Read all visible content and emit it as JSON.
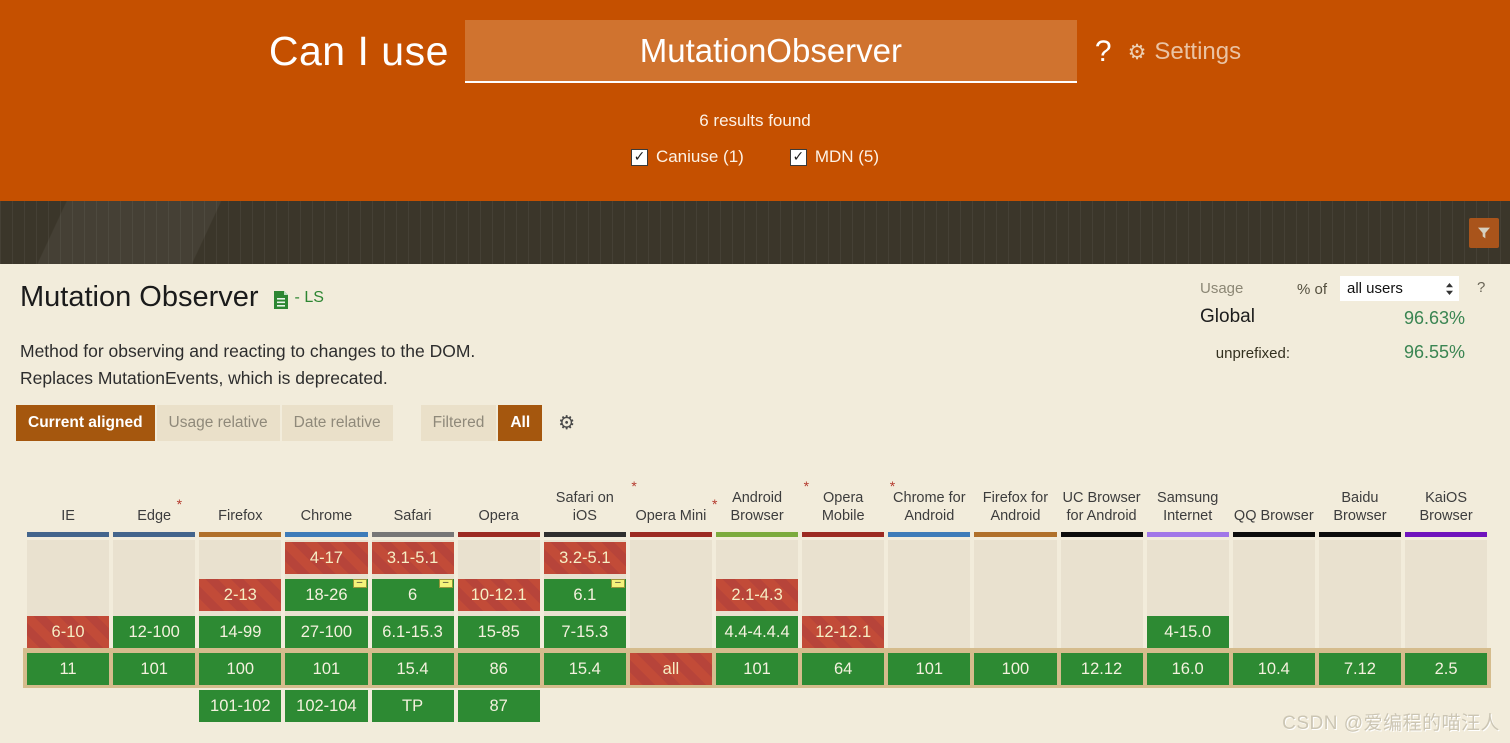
{
  "header": {
    "brand": "Can I use",
    "search_value": "MutationObserver",
    "help": "?",
    "settings_label": "Settings",
    "results_text": "6 results found",
    "sources": [
      {
        "label": "Caniuse (1)",
        "checked": true
      },
      {
        "label": "MDN (5)",
        "checked": true
      }
    ]
  },
  "feature": {
    "title": "Mutation Observer",
    "spec_status": "- LS",
    "description_line1": "Method for observing and reacting to changes to the DOM.",
    "description_line2": "Replaces MutationEvents, which is deprecated."
  },
  "usage": {
    "label": "Usage",
    "percent_of": "% of",
    "selected_option": "all users",
    "help": "?",
    "global_label": "Global",
    "global_value": "96.63%",
    "unprefixed_label": "unprefixed:",
    "unprefixed_value": "96.55%"
  },
  "toolbar": {
    "tabs": [
      {
        "label": "Current aligned",
        "active": true
      },
      {
        "label": "Usage relative",
        "active": false
      },
      {
        "label": "Date relative",
        "active": false
      }
    ],
    "filters": [
      {
        "label": "Filtered",
        "active": false
      },
      {
        "label": "All",
        "active": true
      }
    ]
  },
  "table": {
    "columns": [
      {
        "label": "IE",
        "starred": false,
        "brand": "#44658c",
        "rows": {
          "3": {
            "t": "6-10",
            "s": "n"
          },
          "4": {
            "t": "11",
            "s": "y"
          }
        }
      },
      {
        "label": "Edge",
        "starred": true,
        "brand": "#44658c",
        "rows": {
          "3": {
            "t": "12-100",
            "s": "y"
          },
          "4": {
            "t": "101",
            "s": "y"
          }
        }
      },
      {
        "label": "Firefox",
        "starred": false,
        "brand": "#b0702a",
        "rows": {
          "2": {
            "t": "2-13",
            "s": "n"
          },
          "3": {
            "t": "14-99",
            "s": "y"
          },
          "4": {
            "t": "100",
            "s": "y"
          },
          "5": {
            "t": "101-102",
            "s": "y"
          }
        }
      },
      {
        "label": "Chrome",
        "starred": false,
        "brand": "#3e7cb9",
        "rows": {
          "1": {
            "t": "4-17",
            "s": "n"
          },
          "2": {
            "t": "18-26",
            "s": "y",
            "note": true
          },
          "3": {
            "t": "27-100",
            "s": "y"
          },
          "4": {
            "t": "101",
            "s": "y"
          },
          "5": {
            "t": "102-104",
            "s": "y"
          }
        }
      },
      {
        "label": "Safari",
        "starred": false,
        "brand": "#777777",
        "rows": {
          "1": {
            "t": "3.1-5.1",
            "s": "n"
          },
          "2": {
            "t": "6",
            "s": "y",
            "note": true
          },
          "3": {
            "t": "6.1-15.3",
            "s": "y"
          },
          "4": {
            "t": "15.4",
            "s": "y"
          },
          "5": {
            "t": "TP",
            "s": "y"
          }
        }
      },
      {
        "label": "Opera",
        "starred": false,
        "brand": "#9c2b23",
        "rows": {
          "2": {
            "t": "10-12.1",
            "s": "n"
          },
          "3": {
            "t": "15-85",
            "s": "y"
          },
          "4": {
            "t": "86",
            "s": "y"
          },
          "5": {
            "t": "87",
            "s": "y"
          }
        }
      },
      {
        "label": "Safari on iOS",
        "starred": true,
        "brand": "#2f2f2f",
        "rows": {
          "1": {
            "t": "3.2-5.1",
            "s": "n"
          },
          "2": {
            "t": "6.1",
            "s": "y",
            "note": true
          },
          "3": {
            "t": "7-15.3",
            "s": "y"
          },
          "4": {
            "t": "15.4",
            "s": "y"
          }
        }
      },
      {
        "label": "Opera Mini",
        "starred": true,
        "brand": "#9c2b23",
        "rows": {
          "4": {
            "t": "all",
            "s": "n"
          }
        }
      },
      {
        "label": "Android Browser",
        "starred": true,
        "brand": "#7cab3e",
        "rows": {
          "2": {
            "t": "2.1-4.3",
            "s": "n"
          },
          "3": {
            "t": "4.4-4.4.4",
            "s": "y"
          },
          "4": {
            "t": "101",
            "s": "y"
          }
        }
      },
      {
        "label": "Opera Mobile",
        "starred": true,
        "brand": "#9c2b23",
        "rows": {
          "3": {
            "t": "12-12.1",
            "s": "n"
          },
          "4": {
            "t": "64",
            "s": "y"
          }
        }
      },
      {
        "label": "Chrome for Android",
        "starred": false,
        "brand": "#3e7cb9",
        "rows": {
          "4": {
            "t": "101",
            "s": "y"
          }
        }
      },
      {
        "label": "Firefox for Android",
        "starred": false,
        "brand": "#b0702a",
        "rows": {
          "4": {
            "t": "100",
            "s": "y"
          }
        }
      },
      {
        "label": "UC Browser for Android",
        "starred": false,
        "brand": "#0d0d0d",
        "rows": {
          "4": {
            "t": "12.12",
            "s": "y"
          }
        }
      },
      {
        "label": "Samsung Internet",
        "starred": false,
        "brand": "#a177e8",
        "rows": {
          "3": {
            "t": "4-15.0",
            "s": "y"
          },
          "4": {
            "t": "16.0",
            "s": "y"
          }
        }
      },
      {
        "label": "QQ Browser",
        "starred": false,
        "brand": "#0d0d0d",
        "rows": {
          "4": {
            "t": "10.4",
            "s": "y"
          }
        }
      },
      {
        "label": "Baidu Browser",
        "starred": false,
        "brand": "#0d0d0d",
        "rows": {
          "4": {
            "t": "7.12",
            "s": "y"
          }
        }
      },
      {
        "label": "KaiOS Browser",
        "starred": false,
        "brand": "#7014bd",
        "rows": {
          "4": {
            "t": "2.5",
            "s": "y"
          }
        }
      }
    ]
  },
  "colors": {
    "header_bg": "#c55000",
    "supported": "#2d8a33",
    "unsupported": "#c24b38",
    "accent_active": "#a5570e",
    "usage_green": "#3a8552"
  },
  "watermark": "CSDN @爱编程的喵汪人"
}
